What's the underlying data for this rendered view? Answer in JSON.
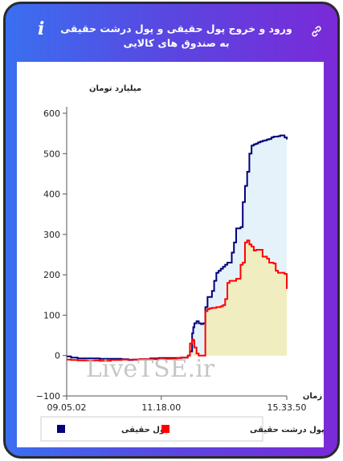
{
  "header": {
    "title": "ورود و خروج پول حقیقی و پول درشت حقیقی به صندوق های کالایی",
    "info_icon": "info-icon",
    "link_icon": "link-icon"
  },
  "chart_data": {
    "type": "area",
    "title": "ورود و خروج پول حقیقی و پول درشت حقیقی به صندوق های کالایی",
    "ylabel": "میلیارد تومان",
    "xlabel": "زمان",
    "ylim": [
      -100,
      600
    ],
    "yticks": [
      -100,
      0,
      100,
      200,
      300,
      400,
      500,
      600
    ],
    "xtick_labels": [
      "09.05.02",
      "11.18.00",
      "15.33.50"
    ],
    "watermark": "LiveTSE.ir",
    "legend_position": "bottom",
    "grid": false,
    "series": [
      {
        "name": "پول حقیقی",
        "color": "#00007a",
        "fill": "#e6f2fa",
        "x": [
          0,
          0.02,
          0.05,
          0.1,
          0.15,
          0.2,
          0.25,
          0.28,
          0.3,
          0.33,
          0.38,
          0.42,
          0.46,
          0.5,
          0.52,
          0.55,
          0.56,
          0.57,
          0.575,
          0.58,
          0.59,
          0.6,
          0.61,
          0.62,
          0.63,
          0.64,
          0.65,
          0.66,
          0.67,
          0.68,
          0.69,
          0.7,
          0.71,
          0.72,
          0.73,
          0.74,
          0.75,
          0.76,
          0.77,
          0.78,
          0.79,
          0.8,
          0.81,
          0.82,
          0.83,
          0.84,
          0.85,
          0.86,
          0.87,
          0.88,
          0.89,
          0.9,
          0.91,
          0.92,
          0.93,
          0.94,
          0.95,
          0.96,
          0.97,
          0.98,
          0.99,
          1
        ],
        "y": [
          -2,
          -5,
          -7,
          -7,
          -8,
          -8,
          -9,
          -11,
          -10,
          -9,
          -7,
          -6,
          -6,
          -6,
          -5,
          0,
          10,
          55,
          70,
          80,
          85,
          80,
          78,
          80,
          120,
          145,
          145,
          160,
          185,
          205,
          210,
          215,
          220,
          225,
          230,
          230,
          255,
          280,
          315,
          315,
          318,
          380,
          420,
          455,
          500,
          520,
          523,
          525,
          528,
          530,
          532,
          533,
          535,
          536,
          540,
          542,
          542,
          543,
          545,
          545,
          540,
          535
        ]
      },
      {
        "name": "پول درشت حقیقی",
        "color": "#ff0000",
        "fill": "#f0eec0",
        "x": [
          0,
          0.02,
          0.05,
          0.1,
          0.15,
          0.2,
          0.25,
          0.28,
          0.3,
          0.33,
          0.38,
          0.42,
          0.46,
          0.5,
          0.52,
          0.55,
          0.56,
          0.57,
          0.575,
          0.58,
          0.59,
          0.6,
          0.61,
          0.62,
          0.63,
          0.64,
          0.65,
          0.66,
          0.67,
          0.68,
          0.69,
          0.7,
          0.71,
          0.72,
          0.73,
          0.74,
          0.75,
          0.76,
          0.77,
          0.78,
          0.79,
          0.8,
          0.81,
          0.82,
          0.83,
          0.84,
          0.85,
          0.86,
          0.87,
          0.88,
          0.89,
          0.9,
          0.91,
          0.92,
          0.93,
          0.94,
          0.95,
          0.96,
          0.97,
          0.98,
          0.99,
          1
        ],
        "y": [
          -10,
          -11,
          -12,
          -12,
          -13,
          -11,
          -10,
          -10,
          -10,
          -9,
          -9,
          -8,
          -8,
          -6,
          -5,
          0,
          30,
          40,
          38,
          20,
          5,
          0,
          0,
          0,
          110,
          115,
          117,
          118,
          118,
          120,
          120,
          122,
          125,
          140,
          180,
          185,
          185,
          185,
          190,
          190,
          225,
          230,
          280,
          285,
          275,
          270,
          260,
          262,
          262,
          262,
          245,
          245,
          240,
          230,
          230,
          228,
          210,
          205,
          205,
          205,
          202,
          165
        ]
      }
    ]
  }
}
